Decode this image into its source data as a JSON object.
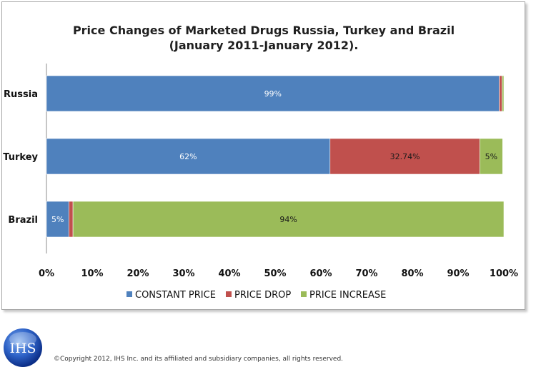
{
  "chart_data": {
    "type": "bar",
    "orientation": "horizontal",
    "stacked": true,
    "title_lines": [
      "Price Changes of Marketed Drugs Russia, Turkey and Brazil",
      "(January 2011-January 2012)."
    ],
    "categories": [
      "Russia",
      "Turkey",
      "Brazil"
    ],
    "series": [
      {
        "name": "CONSTANT PRICE",
        "color": "#4f81bd",
        "values": [
          99.0,
          62.0,
          4.9
        ],
        "labels": [
          "99%",
          "62%",
          "5%"
        ]
      },
      {
        "name": "PRICE DROP",
        "color": "#c0504d",
        "values": [
          0.6,
          32.74,
          0.9
        ],
        "labels": [
          "",
          "32.74%",
          ""
        ]
      },
      {
        "name": "PRICE INCREASE",
        "color": "#9bbb59",
        "values": [
          0.4,
          5.0,
          94.2
        ],
        "labels": [
          "",
          "5%",
          "94%"
        ]
      }
    ],
    "xlim": [
      0,
      100
    ],
    "xticks": [
      "0%",
      "10%",
      "20%",
      "30%",
      "40%",
      "50%",
      "60%",
      "70%",
      "80%",
      "90%",
      "100%"
    ],
    "grid": false,
    "legend_position": "bottom"
  },
  "footer": {
    "logo_text": "IHS",
    "copyright": "©Copyright 2012, IHS Inc. and its affiliated and subsidiary companies, all rights reserved."
  }
}
